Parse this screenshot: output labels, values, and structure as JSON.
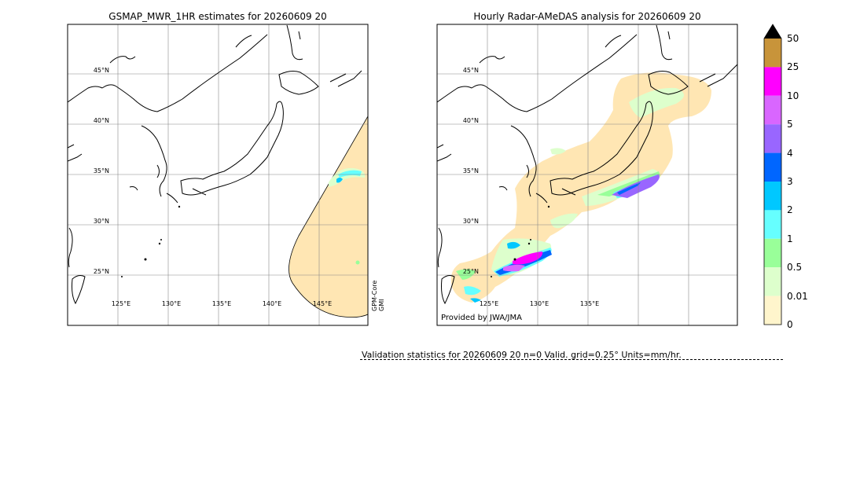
{
  "left_panel": {
    "title": "GSMAP_MWR_1HR estimates for 20260609 20",
    "lat_labels": [
      "45°N",
      "40°N",
      "35°N",
      "30°N",
      "25°N"
    ],
    "lon_labels": [
      "125°E",
      "130°E",
      "135°E",
      "140°E",
      "145°E"
    ],
    "sensor_label_1": "GPM-Core",
    "sensor_label_2": "GMI"
  },
  "right_panel": {
    "title": "Hourly Radar-AMeDAS analysis for 20260609 20",
    "lat_labels": [
      "45°N",
      "40°N",
      "35°N",
      "30°N",
      "25°N"
    ],
    "lon_labels": [
      "125°E",
      "130°E",
      "135°E"
    ],
    "credit": "Provided by JWA/JMA"
  },
  "validation_text": "Validation statistics for 20260609 20  n=0 Valid. grid=0.25° Units=mm/hr.",
  "colorbar": {
    "labels": [
      "50",
      "25",
      "10",
      "5",
      "4",
      "3",
      "2",
      "1",
      "0.5",
      "0.01",
      "0"
    ],
    "colors": [
      "#c8943a",
      "#ff00ff",
      "#d966ff",
      "#9966ff",
      "#0066ff",
      "#00c8ff",
      "#66ffff",
      "#99ff99",
      "#ddffcc",
      "#fff5cc",
      "#ffe6b3"
    ],
    "extend_color": "#000000"
  }
}
